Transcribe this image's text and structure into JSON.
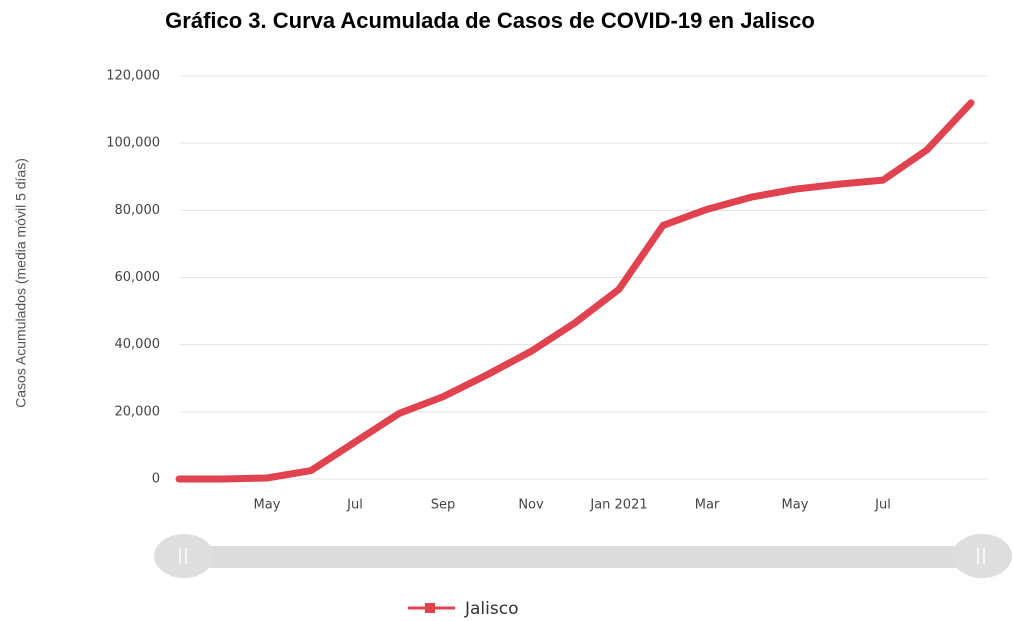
{
  "chart_data": {
    "type": "line",
    "title": "Gráfico 3. Curva Acumulada de Casos de COVID-19 en Jalisco",
    "y_label": "Casos Acumulados (media móvil 5 días)",
    "categories": [
      null,
      null,
      "May",
      null,
      "Jul",
      null,
      "Sep",
      null,
      "Nov",
      null,
      "Jan 2021",
      null,
      "Mar",
      null,
      "May",
      null,
      "Jul",
      null,
      null
    ],
    "series": [
      {
        "name": "Jalisco",
        "color": "#e0434f",
        "values": [
          0,
          0,
          300,
          2500,
          11000,
          19500,
          24500,
          31000,
          38000,
          46500,
          56500,
          75500,
          80300,
          83900,
          86300,
          87800,
          89000,
          98000,
          112000
        ]
      }
    ],
    "ylim": [
      0,
      120000
    ],
    "yticks": [
      0,
      {
        "value": 20000,
        "label": "20,000"
      },
      {
        "value": 40000,
        "label": "40,000"
      },
      {
        "value": 60000,
        "label": "60,000"
      },
      {
        "value": 80000,
        "label": "80,000"
      },
      {
        "value": 100000,
        "label": "100,000"
      },
      {
        "value": 120000,
        "label": "120,000"
      }
    ],
    "grid": true
  }
}
